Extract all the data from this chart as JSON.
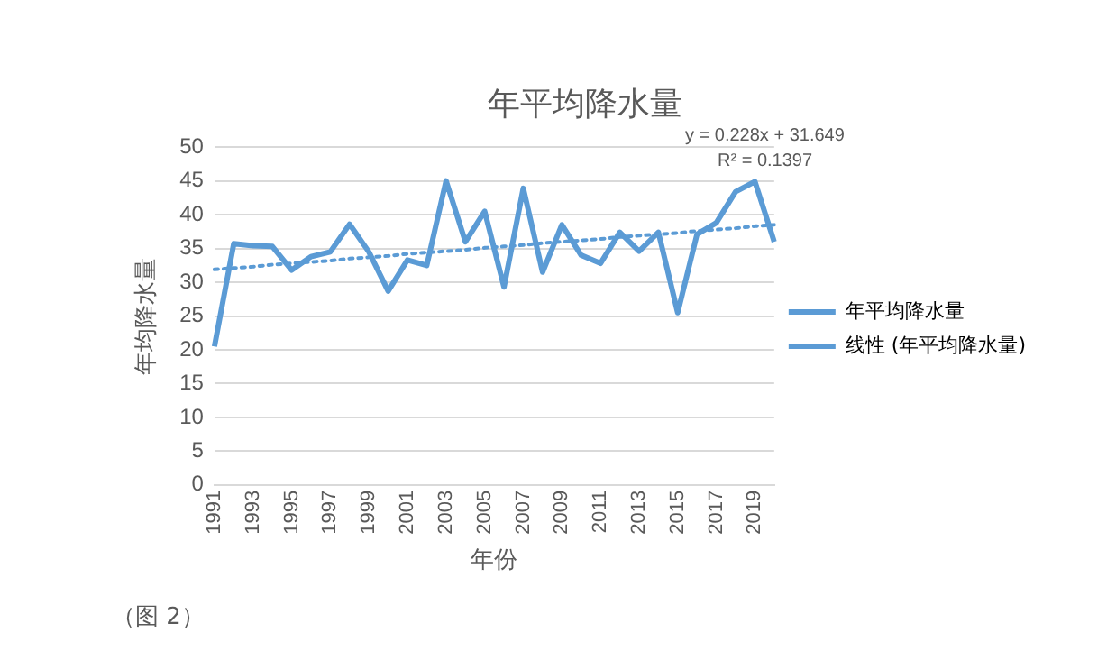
{
  "chart_data": {
    "type": "line",
    "title": "年平均降水量",
    "xlabel": "年份",
    "ylabel": "年均降水量",
    "categories": [
      "1991",
      null,
      "1993",
      null,
      "1995",
      null,
      "1997",
      null,
      "1999",
      null,
      "2001",
      null,
      "2003",
      null,
      "2005",
      null,
      "2007",
      null,
      "2009",
      null,
      "2011",
      null,
      "2013",
      null,
      "2015",
      null,
      "2017",
      null,
      "2019",
      null
    ],
    "series": [
      {
        "name": "年平均降水量",
        "color": "#5b9bd5",
        "line_style": "solid",
        "values": [
          20.5,
          35.7,
          35.4,
          35.3,
          31.8,
          33.8,
          34.5,
          38.6,
          34.5,
          28.7,
          33.3,
          32.5,
          45.0,
          36.0,
          40.5,
          29.3,
          43.9,
          31.5,
          38.5,
          34.0,
          32.8,
          37.4,
          34.6,
          37.4,
          25.5,
          37.1,
          38.8,
          43.4,
          44.9,
          36.0
        ]
      },
      {
        "name": "线性 (年平均降水量)",
        "color": "#5b9bd5",
        "line_style": "dotted",
        "values": [
          31.9,
          32.1,
          32.3,
          32.6,
          32.8,
          33.0,
          33.2,
          33.5,
          33.7,
          33.9,
          34.2,
          34.4,
          34.6,
          34.8,
          35.1,
          35.3,
          35.5,
          35.8,
          36.0,
          36.2,
          36.4,
          36.7,
          36.9,
          37.1,
          37.3,
          37.6,
          37.8,
          38.0,
          38.3,
          38.5
        ]
      }
    ],
    "ylim": [
      0,
      50
    ],
    "yticks": [
      0,
      5,
      10,
      15,
      20,
      25,
      30,
      35,
      40,
      45,
      50
    ],
    "grid": "y",
    "legend": "right",
    "marker": "none",
    "annotations": [
      "y = 0.228x + 31.649",
      "R² = 0.1397",
      "（图 2）"
    ]
  }
}
